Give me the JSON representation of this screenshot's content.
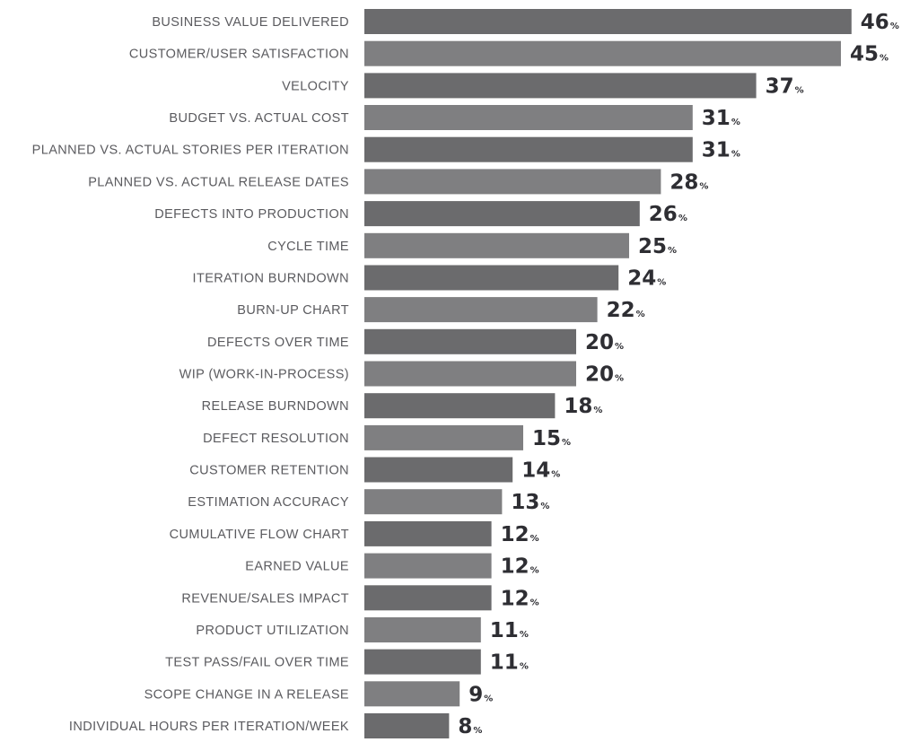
{
  "chart_data": {
    "type": "bar",
    "orientation": "horizontal",
    "unit": "%",
    "categories": [
      "BUSINESS VALUE DELIVERED",
      "CUSTOMER/USER SATISFACTION",
      "VELOCITY",
      "BUDGET VS. ACTUAL COST",
      "PLANNED VS. ACTUAL STORIES PER ITERATION",
      "PLANNED VS. ACTUAL RELEASE DATES",
      "DEFECTS INTO PRODUCTION",
      "CYCLE TIME",
      "ITERATION BURNDOWN",
      "BURN-UP CHART",
      "DEFECTS OVER TIME",
      "WIP (WORK-IN-PROCESS)",
      "RELEASE BURNDOWN",
      "DEFECT RESOLUTION",
      "CUSTOMER RETENTION",
      "ESTIMATION ACCURACY",
      "CUMULATIVE FLOW CHART",
      "EARNED VALUE",
      "REVENUE/SALES IMPACT",
      "PRODUCT UTILIZATION",
      "TEST PASS/FAIL OVER TIME",
      "SCOPE CHANGE IN A RELEASE",
      "INDIVIDUAL HOURS PER ITERATION/WEEK"
    ],
    "values": [
      46,
      45,
      37,
      31,
      31,
      28,
      26,
      25,
      24,
      22,
      20,
      20,
      18,
      15,
      14,
      13,
      12,
      12,
      12,
      11,
      11,
      9,
      8
    ],
    "colors": {
      "bar_dark": "#6b6b6d",
      "bar_light": "#7f7f81",
      "label_text": "#5b5b5f",
      "value_text": "#2e2e33"
    },
    "title": "",
    "xlabel": "",
    "ylabel": "",
    "grid": false,
    "legend": "none"
  }
}
